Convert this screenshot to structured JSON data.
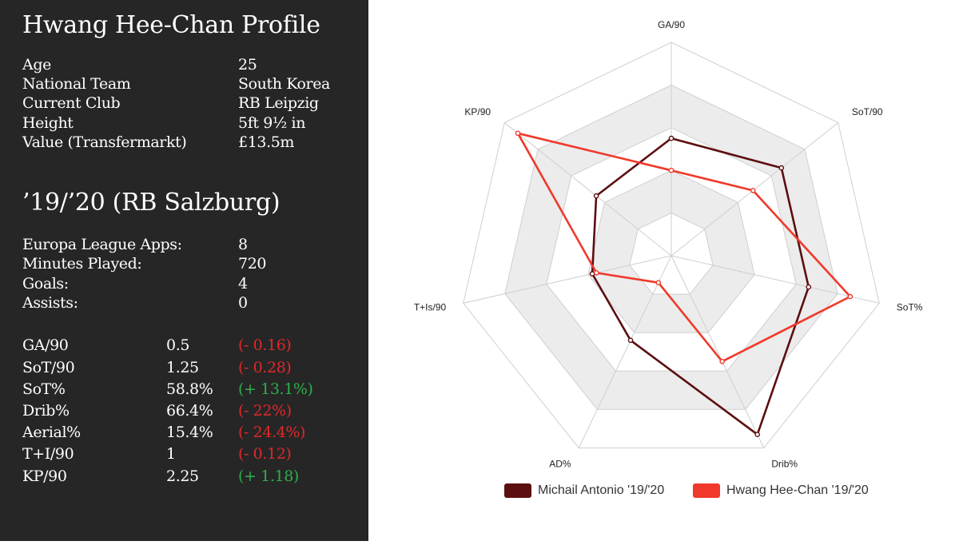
{
  "profile": {
    "title": "Hwang Hee-Chan Profile",
    "rows": [
      {
        "label": "Age",
        "value": "25"
      },
      {
        "label": "National Team",
        "value": "South Korea"
      },
      {
        "label": "Current Club",
        "value": "RB Leipzig"
      },
      {
        "label": "Height",
        "value": "5ft 9½ in"
      },
      {
        "label": "Value (Transfermarkt)",
        "value": "£13.5m"
      }
    ]
  },
  "season": {
    "title": "’19/’20 (RB Salzburg)",
    "rows": [
      {
        "label": "Europa League Apps:",
        "value": "8"
      },
      {
        "label": "Minutes Played:",
        "value": "720"
      },
      {
        "label": "Goals:",
        "value": "4"
      },
      {
        "label": "Assists:",
        "value": "0"
      }
    ]
  },
  "stats": [
    {
      "label": "GA/90",
      "value": "0.5",
      "diff": "(- 0.16)",
      "sign": "neg"
    },
    {
      "label": "SoT/90",
      "value": "1.25",
      "diff": "(- 0.28)",
      "sign": "neg"
    },
    {
      "label": "SoT%",
      "value": "58.8%",
      "diff": "(+ 13.1%)",
      "sign": "pos"
    },
    {
      "label": "Drib%",
      "value": "66.4%",
      "diff": "(- 22%)",
      "sign": "neg"
    },
    {
      "label": "Aerial%",
      "value": "15.4%",
      "diff": "(- 24.4%)",
      "sign": "neg"
    },
    {
      "label": "T+I/90",
      "value": "1",
      "diff": "(- 0.12)",
      "sign": "neg"
    },
    {
      "label": "KP/90",
      "value": "2.25",
      "diff": "(+ 1.18)",
      "sign": "pos"
    }
  ],
  "chart_data": {
    "type": "radar",
    "axes": [
      "GA/90",
      "SoT/90",
      "SoT%",
      "Drib%",
      "AD%",
      "T+Is/90",
      "KP/90"
    ],
    "rings": 5,
    "series": [
      {
        "name": "Michail Antonio '19/'20",
        "color": "#5c0f0f",
        "values": [
          0.55,
          0.66,
          0.66,
          0.93,
          0.44,
          0.38,
          0.45
        ]
      },
      {
        "name": "Hwang Hee-Chan '19/'20",
        "color": "#f0392b",
        "values": [
          0.4,
          0.49,
          0.86,
          0.55,
          0.14,
          0.36,
          0.92
        ]
      }
    ],
    "legend_position": "bottom",
    "ring_fill": "#ececec",
    "grid_color": "#cfcfcf"
  }
}
